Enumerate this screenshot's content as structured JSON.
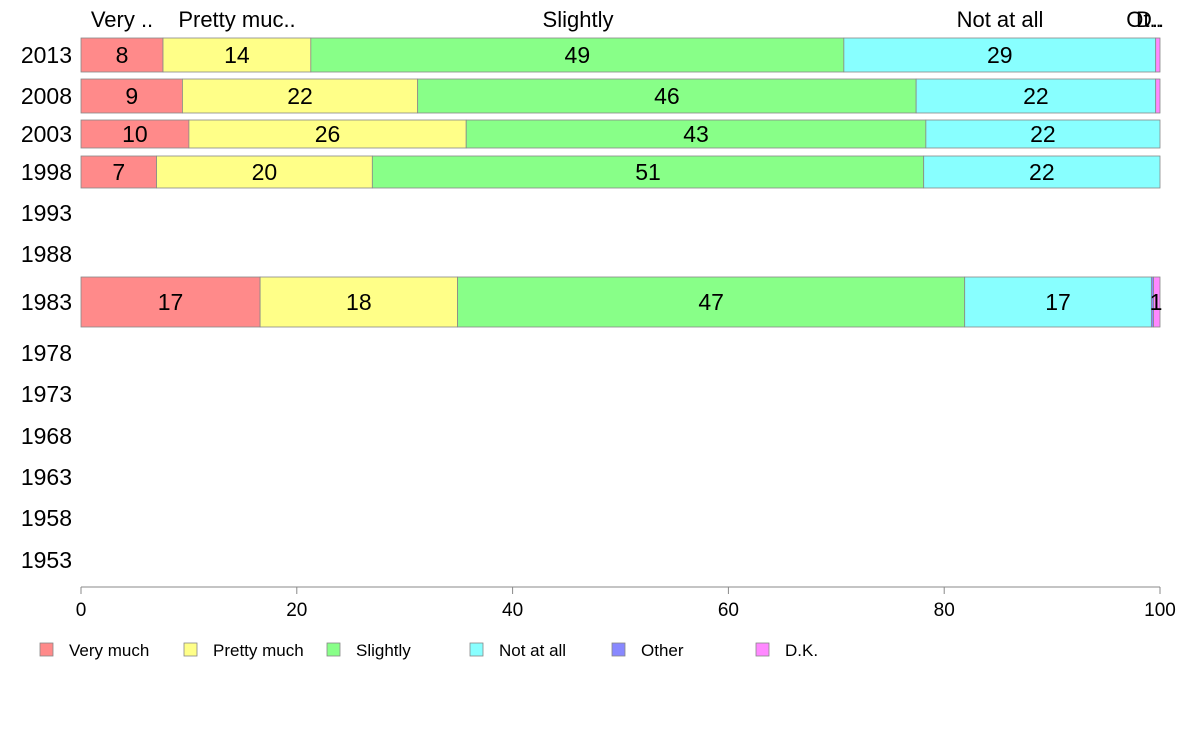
{
  "chart_data": {
    "type": "bar",
    "orientation": "horizontal",
    "stacked": true,
    "column_labels": [
      "Very ..",
      "Pretty muc..",
      "Slightly",
      "Not at all",
      "Ot..",
      "D.."
    ],
    "categories": [
      "2013",
      "2008",
      "2003",
      "1998",
      "1993",
      "1988",
      "1983",
      "1978",
      "1973",
      "1968",
      "1963",
      "1958",
      "1953"
    ],
    "series": [
      {
        "name": "Very much",
        "color": "#ff8a8a",
        "values": [
          7.6,
          9.4,
          10.0,
          7.0,
          null,
          null,
          16.6,
          null,
          null,
          null,
          null,
          null,
          null
        ],
        "labels": [
          "8",
          "9",
          "10",
          "7",
          "",
          "",
          "17",
          "",
          "",
          "",
          "",
          "",
          ""
        ]
      },
      {
        "name": "Pretty much",
        "color": "#ffff88",
        "values": [
          13.7,
          21.8,
          25.7,
          20.0,
          null,
          null,
          18.3,
          null,
          null,
          null,
          null,
          null,
          null
        ],
        "labels": [
          "14",
          "22",
          "26",
          "20",
          "",
          "",
          "18",
          "",
          "",
          "",
          "",
          "",
          ""
        ]
      },
      {
        "name": "Slightly",
        "color": "#88ff88",
        "values": [
          49.4,
          46.2,
          42.6,
          51.1,
          null,
          null,
          47.0,
          null,
          null,
          null,
          null,
          null,
          null
        ],
        "labels": [
          "49",
          "46",
          "43",
          "51",
          "",
          "",
          "47",
          "",
          "",
          "",
          "",
          "",
          ""
        ]
      },
      {
        "name": "Not at all",
        "color": "#88ffff",
        "values": [
          28.9,
          22.2,
          21.7,
          21.9,
          null,
          null,
          17.3,
          null,
          null,
          null,
          null,
          null,
          null
        ],
        "labels": [
          "29",
          "22",
          "22",
          "22",
          "",
          "",
          "17",
          "",
          "",
          "",
          "",
          "",
          ""
        ]
      },
      {
        "name": "Other",
        "color": "#8888ff",
        "values": [
          0.0,
          0.0,
          0.0,
          0.0,
          null,
          null,
          0.2,
          null,
          null,
          null,
          null,
          null,
          null
        ],
        "labels": [
          "",
          "",
          "",
          "",
          "",
          "",
          "",
          "",
          "",
          "",
          "",
          "",
          ""
        ]
      },
      {
        "name": "D.K.",
        "color": "#ff88ff",
        "values": [
          0.4,
          0.4,
          0.0,
          0.0,
          null,
          null,
          0.6,
          null,
          null,
          null,
          null,
          null,
          null
        ],
        "labels": [
          "",
          "",
          "",
          "",
          "",
          "",
          "1",
          "",
          "",
          "",
          "",
          "",
          ""
        ]
      }
    ],
    "xlim": [
      0,
      100
    ],
    "xticks": [
      0,
      20,
      40,
      60,
      80,
      100
    ],
    "title": "",
    "xlabel": "",
    "ylabel": "",
    "grid": false,
    "legend_position": "bottom-left"
  }
}
